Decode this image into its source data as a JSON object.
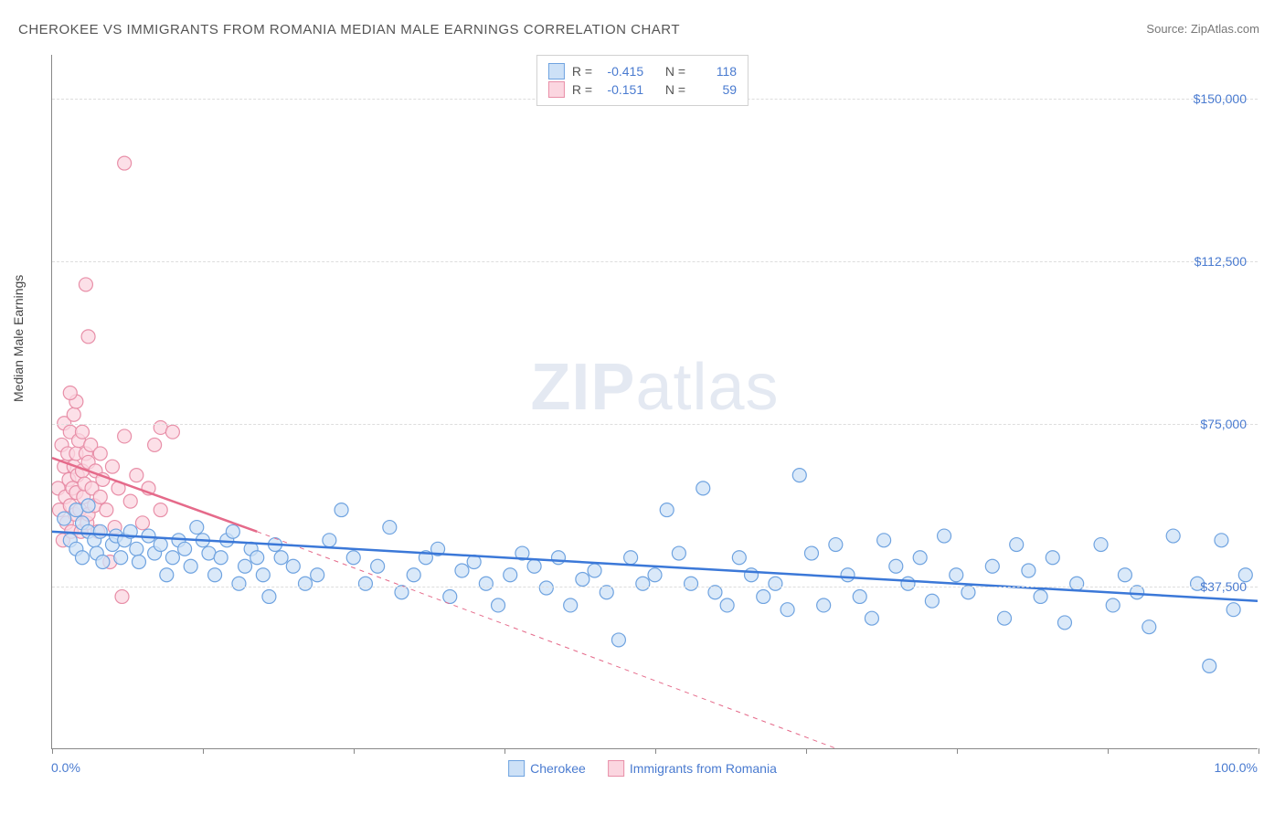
{
  "title": "CHEROKEE VS IMMIGRANTS FROM ROMANIA MEDIAN MALE EARNINGS CORRELATION CHART",
  "source_label": "Source:",
  "source_name": "ZipAtlas.com",
  "watermark_zip": "ZIP",
  "watermark_atlas": "atlas",
  "yaxis_title": "Median Male Earnings",
  "chart": {
    "type": "scatter",
    "xlim": [
      0,
      100
    ],
    "ylim": [
      0,
      160000
    ],
    "xlabel_min": "0.0%",
    "xlabel_max": "100.0%",
    "xtick_positions": [
      0,
      12.5,
      25,
      37.5,
      50,
      62.5,
      75,
      87.5,
      100
    ],
    "yticks": [
      {
        "value": 37500,
        "label": "$37,500"
      },
      {
        "value": 75000,
        "label": "$75,000"
      },
      {
        "value": 112500,
        "label": "$112,500"
      },
      {
        "value": 150000,
        "label": "$150,000"
      }
    ],
    "background_color": "#ffffff",
    "grid_color": "#dddddd",
    "marker_radius": 7.5,
    "marker_stroke_width": 1.2,
    "trend_line_width": 2.5,
    "trend_dash_width": 1,
    "series": [
      {
        "name": "Cherokee",
        "marker_fill": "#cde1f7",
        "marker_stroke": "#6fa3e0",
        "line_color": "#3b78d8",
        "R": "-0.415",
        "N": "118",
        "trend_solid": {
          "x1": 0,
          "y1": 50000,
          "x2": 100,
          "y2": 34000
        },
        "points": [
          [
            1,
            53000
          ],
          [
            1.5,
            48000
          ],
          [
            2,
            55000
          ],
          [
            2,
            46000
          ],
          [
            2.5,
            52000
          ],
          [
            2.5,
            44000
          ],
          [
            3,
            50000
          ],
          [
            3,
            56000
          ],
          [
            3.5,
            48000
          ],
          [
            3.7,
            45000
          ],
          [
            4,
            50000
          ],
          [
            4.2,
            43000
          ],
          [
            5,
            47000
          ],
          [
            5.3,
            49000
          ],
          [
            5.7,
            44000
          ],
          [
            6,
            48000
          ],
          [
            6.5,
            50000
          ],
          [
            7,
            46000
          ],
          [
            7.2,
            43000
          ],
          [
            8,
            49000
          ],
          [
            8.5,
            45000
          ],
          [
            9,
            47000
          ],
          [
            9.5,
            40000
          ],
          [
            10,
            44000
          ],
          [
            10.5,
            48000
          ],
          [
            11,
            46000
          ],
          [
            11.5,
            42000
          ],
          [
            12,
            51000
          ],
          [
            12.5,
            48000
          ],
          [
            13,
            45000
          ],
          [
            13.5,
            40000
          ],
          [
            14,
            44000
          ],
          [
            14.5,
            48000
          ],
          [
            15,
            50000
          ],
          [
            15.5,
            38000
          ],
          [
            16,
            42000
          ],
          [
            16.5,
            46000
          ],
          [
            17,
            44000
          ],
          [
            17.5,
            40000
          ],
          [
            18,
            35000
          ],
          [
            18.5,
            47000
          ],
          [
            19,
            44000
          ],
          [
            20,
            42000
          ],
          [
            21,
            38000
          ],
          [
            22,
            40000
          ],
          [
            23,
            48000
          ],
          [
            24,
            55000
          ],
          [
            25,
            44000
          ],
          [
            26,
            38000
          ],
          [
            27,
            42000
          ],
          [
            28,
            51000
          ],
          [
            29,
            36000
          ],
          [
            30,
            40000
          ],
          [
            31,
            44000
          ],
          [
            32,
            46000
          ],
          [
            33,
            35000
          ],
          [
            34,
            41000
          ],
          [
            35,
            43000
          ],
          [
            36,
            38000
          ],
          [
            37,
            33000
          ],
          [
            38,
            40000
          ],
          [
            39,
            45000
          ],
          [
            40,
            42000
          ],
          [
            41,
            37000
          ],
          [
            42,
            44000
          ],
          [
            43,
            33000
          ],
          [
            44,
            39000
          ],
          [
            45,
            41000
          ],
          [
            46,
            36000
          ],
          [
            47,
            25000
          ],
          [
            48,
            44000
          ],
          [
            49,
            38000
          ],
          [
            50,
            40000
          ],
          [
            51,
            55000
          ],
          [
            52,
            45000
          ],
          [
            53,
            38000
          ],
          [
            54,
            60000
          ],
          [
            55,
            36000
          ],
          [
            56,
            33000
          ],
          [
            57,
            44000
          ],
          [
            58,
            40000
          ],
          [
            59,
            35000
          ],
          [
            60,
            38000
          ],
          [
            61,
            32000
          ],
          [
            62,
            63000
          ],
          [
            63,
            45000
          ],
          [
            64,
            33000
          ],
          [
            65,
            47000
          ],
          [
            66,
            40000
          ],
          [
            67,
            35000
          ],
          [
            68,
            30000
          ],
          [
            69,
            48000
          ],
          [
            70,
            42000
          ],
          [
            71,
            38000
          ],
          [
            72,
            44000
          ],
          [
            73,
            34000
          ],
          [
            74,
            49000
          ],
          [
            75,
            40000
          ],
          [
            76,
            36000
          ],
          [
            78,
            42000
          ],
          [
            79,
            30000
          ],
          [
            80,
            47000
          ],
          [
            81,
            41000
          ],
          [
            82,
            35000
          ],
          [
            83,
            44000
          ],
          [
            84,
            29000
          ],
          [
            85,
            38000
          ],
          [
            87,
            47000
          ],
          [
            88,
            33000
          ],
          [
            89,
            40000
          ],
          [
            90,
            36000
          ],
          [
            91,
            28000
          ],
          [
            93,
            49000
          ],
          [
            95,
            38000
          ],
          [
            96,
            19000
          ],
          [
            97,
            48000
          ],
          [
            98,
            32000
          ],
          [
            99,
            40000
          ]
        ]
      },
      {
        "name": "Immigrants from Romania",
        "marker_fill": "#fbd6e0",
        "marker_stroke": "#e88fa8",
        "line_color": "#e56a8a",
        "R": "-0.151",
        "N": "59",
        "trend_solid": {
          "x1": 0,
          "y1": 67000,
          "x2": 17,
          "y2": 50000
        },
        "trend_dashed": {
          "x1": 17,
          "y1": 50000,
          "x2": 65,
          "y2": 0
        },
        "points": [
          [
            0.5,
            60000
          ],
          [
            0.6,
            55000
          ],
          [
            0.8,
            70000
          ],
          [
            0.9,
            48000
          ],
          [
            1,
            65000
          ],
          [
            1,
            75000
          ],
          [
            1.1,
            58000
          ],
          [
            1.2,
            52000
          ],
          [
            1.3,
            68000
          ],
          [
            1.4,
            62000
          ],
          [
            1.5,
            73000
          ],
          [
            1.5,
            56000
          ],
          [
            1.6,
            50000
          ],
          [
            1.7,
            60000
          ],
          [
            1.8,
            65000
          ],
          [
            1.8,
            77000
          ],
          [
            1.9,
            54000
          ],
          [
            2,
            68000
          ],
          [
            2,
            59000
          ],
          [
            2.1,
            63000
          ],
          [
            2.2,
            71000
          ],
          [
            2.3,
            55000
          ],
          [
            2.4,
            50000
          ],
          [
            2.5,
            64000
          ],
          [
            2.5,
            73000
          ],
          [
            2.6,
            58000
          ],
          [
            2.7,
            61000
          ],
          [
            2.8,
            68000
          ],
          [
            2.9,
            52000
          ],
          [
            3,
            66000
          ],
          [
            3,
            54000
          ],
          [
            3.2,
            70000
          ],
          [
            3.3,
            60000
          ],
          [
            3.5,
            56000
          ],
          [
            3.6,
            64000
          ],
          [
            3.8,
            50000
          ],
          [
            4,
            68000
          ],
          [
            4,
            58000
          ],
          [
            4.2,
            62000
          ],
          [
            4.5,
            55000
          ],
          [
            4.8,
            43000
          ],
          [
            5,
            65000
          ],
          [
            5.2,
            51000
          ],
          [
            5.5,
            60000
          ],
          [
            5.8,
            35000
          ],
          [
            6,
            72000
          ],
          [
            6.5,
            57000
          ],
          [
            7,
            63000
          ],
          [
            7.5,
            52000
          ],
          [
            8,
            60000
          ],
          [
            8.5,
            70000
          ],
          [
            9,
            55000
          ],
          [
            9,
            74000
          ],
          [
            10,
            73000
          ],
          [
            3,
            95000
          ],
          [
            2.8,
            107000
          ],
          [
            6,
            135000
          ],
          [
            2,
            80000
          ],
          [
            1.5,
            82000
          ]
        ]
      }
    ]
  },
  "legend_labels": {
    "R": "R =",
    "N": "N ="
  }
}
